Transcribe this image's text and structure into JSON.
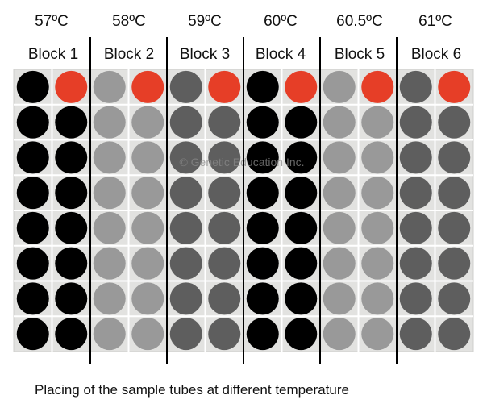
{
  "temperatures": [
    "57ºC",
    "58ºC",
    "59ºC",
    "60ºC",
    "60.5ºC",
    "61ºC"
  ],
  "blocks": [
    "Block 1",
    "Block 2",
    "Block 3",
    "Block 4",
    "Block 5",
    "Block 6"
  ],
  "watermark": "© Genetic Education Inc.",
  "caption": "Placing of the sample tubes at different temperature",
  "plate": {
    "rows": 8,
    "columns": 12,
    "columns_per_block": 2,
    "first_row_second_column_per_block": "control"
  },
  "colors": {
    "block_tubes": [
      "#000000",
      "#999999",
      "#5e5e5e",
      "#000000",
      "#999999",
      "#5e5e5e"
    ],
    "control_tube": "#e63e27",
    "plate_background": "#e2e2e0",
    "plate_lines": "#ffffff",
    "separator_lines": "#000000"
  }
}
